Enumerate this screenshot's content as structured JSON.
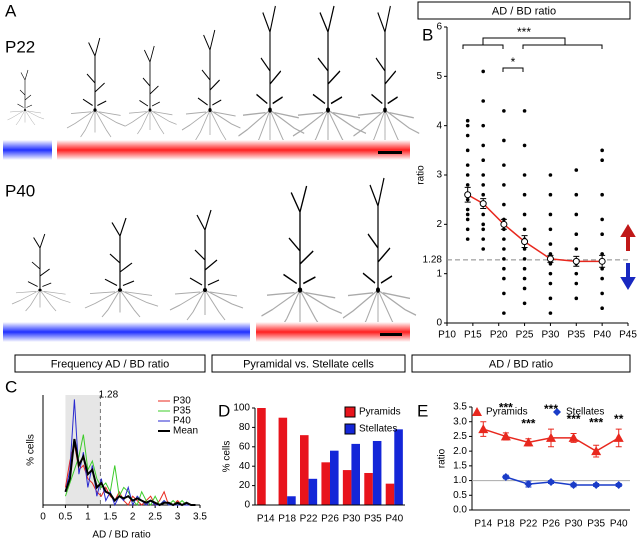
{
  "figure_a": {
    "panel": "A",
    "labels": [
      "P22",
      "P40"
    ]
  },
  "chart_data": [
    {
      "panel": "B",
      "header": "AD / BD  ratio",
      "type": "scatter",
      "ylabel": "ratio",
      "xlim": [
        10,
        45
      ],
      "xticks": [
        {
          "value": 10,
          "label": "P10"
        },
        {
          "value": 15,
          "label": "P15"
        },
        {
          "value": 20,
          "label": "P20"
        },
        {
          "value": 25,
          "label": "P25"
        },
        {
          "value": 30,
          "label": "P30"
        },
        {
          "value": 35,
          "label": "P35"
        },
        {
          "value": 40,
          "label": "P40"
        },
        {
          "value": 45,
          "label": "P45"
        }
      ],
      "ylim": [
        0,
        6
      ],
      "yticks": [
        0,
        1,
        2,
        3,
        4,
        5,
        6
      ],
      "threshold": 1.28,
      "groups": [
        {
          "x": 14,
          "values": [
            1.7,
            1.9,
            2.1,
            2.2,
            2.3,
            2.5,
            2.6,
            2.8,
            3.0,
            3.2,
            3.5,
            3.8,
            4.0,
            4.1
          ]
        },
        {
          "x": 17,
          "values": [
            1.5,
            1.7,
            1.9,
            2.0,
            2.2,
            2.4,
            2.6,
            2.8,
            3.0,
            3.3,
            3.6,
            4.0,
            4.5,
            5.1
          ]
        },
        {
          "x": 21,
          "values": [
            0.2,
            0.6,
            0.9,
            1.1,
            1.3,
            1.5,
            1.7,
            1.9,
            2.1,
            2.4,
            2.8,
            3.2,
            3.7,
            4.3
          ]
        },
        {
          "x": 25,
          "values": [
            0.4,
            0.7,
            0.9,
            1.1,
            1.3,
            1.5,
            1.7,
            1.9,
            2.2,
            2.6,
            3.0,
            3.6,
            4.3
          ]
        },
        {
          "x": 30,
          "values": [
            0.2,
            0.5,
            0.8,
            1.0,
            1.2,
            1.4,
            1.6,
            1.9,
            2.2,
            2.6,
            3.0
          ]
        },
        {
          "x": 35,
          "values": [
            0.5,
            0.8,
            1.0,
            1.2,
            1.5,
            1.8,
            2.2,
            2.6,
            3.1
          ]
        },
        {
          "x": 40,
          "values": [
            0.3,
            0.6,
            0.9,
            1.1,
            1.4,
            1.8,
            2.1,
            2.6,
            3.3,
            3.5
          ]
        }
      ],
      "mean": {
        "color": "#e8281e",
        "x": [
          14,
          17,
          21,
          25,
          30,
          35,
          40
        ],
        "values": [
          2.6,
          2.42,
          2.0,
          1.65,
          1.3,
          1.25,
          1.25
        ],
        "errors": [
          0.15,
          0.1,
          0.1,
          0.12,
          0.07,
          0.1,
          0.12
        ]
      },
      "annotations": [
        "***",
        "*"
      ]
    },
    {
      "panel": "C",
      "header": "Frequency  AD / BD ratio",
      "type": "line",
      "xlabel": "AD / BD ratio",
      "ylabel": "% cells",
      "xlim": [
        0,
        3.5
      ],
      "xticks": [
        0,
        0.5,
        1,
        1.5,
        2,
        2.5,
        3,
        3.5
      ],
      "ylim": [
        0,
        25
      ],
      "threshold": 1.28,
      "legend": "upper right",
      "x": [
        0.5,
        0.6,
        0.7,
        0.8,
        0.9,
        1.0,
        1.1,
        1.2,
        1.3,
        1.4,
        1.5,
        1.6,
        1.7,
        1.8,
        1.9,
        2.0,
        2.1,
        2.2,
        2.3,
        2.4,
        2.5,
        2.6,
        2.7,
        2.8,
        2.9,
        3.0,
        3.1,
        3.2,
        3.3,
        3.4
      ],
      "series": [
        {
          "name": "P30",
          "color": "#e8281e",
          "line_width": 1,
          "values": [
            4,
            10,
            14,
            8,
            9,
            6,
            5,
            3,
            2,
            4,
            2,
            1,
            3,
            1,
            0,
            2,
            1,
            0,
            1,
            2,
            0,
            1,
            3,
            0,
            0,
            1,
            0,
            0,
            0,
            0
          ]
        },
        {
          "name": "P35",
          "color": "#3ccc2a",
          "line_width": 1,
          "values": [
            2,
            5,
            8,
            11,
            16,
            8,
            10,
            6,
            4,
            5,
            3,
            9,
            2,
            4,
            3,
            1,
            0,
            3,
            1,
            0,
            2,
            0,
            1,
            0,
            1,
            0,
            1,
            0,
            0,
            0
          ]
        },
        {
          "name": "P40",
          "color": "#2a2ad0",
          "line_width": 1,
          "values": [
            3,
            8,
            24,
            7,
            12,
            4,
            9,
            2,
            6,
            1,
            3,
            0,
            2,
            1,
            4,
            0,
            2,
            1,
            0,
            1,
            0,
            0,
            1,
            0,
            0,
            0,
            0,
            0,
            0,
            0
          ]
        },
        {
          "name": "Mean",
          "color": "#000000",
          "line_width": 2,
          "values": [
            3,
            6,
            15,
            9,
            11,
            7,
            8,
            4,
            5,
            3,
            2.5,
            1,
            2,
            1.5,
            2,
            1,
            1.5,
            1,
            0.5,
            1,
            0.5,
            0,
            0.5,
            0.5,
            0,
            0.5,
            0,
            0.5,
            0,
            0
          ]
        }
      ]
    },
    {
      "panel": "D",
      "header": "Pyramidal vs. Stellate cells",
      "type": "bar",
      "ylabel": "% cells",
      "categories": [
        "P14",
        "P18",
        "P22",
        "P26",
        "P30",
        "P35",
        "P40"
      ],
      "ylim": [
        0,
        100
      ],
      "yticks": [
        0,
        20,
        40,
        60,
        80,
        100
      ],
      "legend": "upper right",
      "series": [
        {
          "name": "Pyramids",
          "color": "#e8141c",
          "values": [
            100,
            90,
            72,
            44,
            36,
            33,
            22
          ]
        },
        {
          "name": "Stellates",
          "color": "#1426d8",
          "values": [
            0,
            9,
            27,
            56,
            63,
            66,
            78
          ]
        }
      ]
    },
    {
      "panel": "E",
      "header": "AD / BD  ratio",
      "type": "line",
      "ylabel": "ratio",
      "categories": [
        "P14",
        "P18",
        "P22",
        "P26",
        "P30",
        "P35",
        "P40"
      ],
      "ylim": [
        0,
        3.5
      ],
      "yticks": [
        {
          "value": 0,
          "label": "0.0"
        },
        {
          "value": 0.5,
          "label": "0.5"
        },
        {
          "value": 1,
          "label": "1.0"
        },
        {
          "value": 1.5,
          "label": "1.5"
        },
        {
          "value": 2,
          "label": "2.0"
        },
        {
          "value": 2.5,
          "label": "2.5"
        },
        {
          "value": 3,
          "label": "3.0"
        },
        {
          "value": 3.5,
          "label": "3.5"
        }
      ],
      "reference_line": 1,
      "legend": "top",
      "series": [
        {
          "name": "Pyramids",
          "color": "#e8281e",
          "marker": "triangle",
          "values": [
            2.75,
            2.5,
            2.3,
            2.45,
            2.45,
            2.0,
            2.45
          ],
          "errors": [
            0.25,
            0.12,
            0.12,
            0.3,
            0.15,
            0.2,
            0.3
          ]
        },
        {
          "name": "Stellates",
          "color": "#1a3cc8",
          "marker": "diamond",
          "values": [
            null,
            1.12,
            0.88,
            0.95,
            0.85,
            0.85,
            0.85
          ],
          "errors": [
            null,
            0.06,
            0.1,
            0.05,
            0.06,
            0.05,
            0.05
          ]
        }
      ],
      "annotations": [
        null,
        "***",
        "***",
        "***",
        "***",
        "***",
        "**"
      ]
    }
  ]
}
